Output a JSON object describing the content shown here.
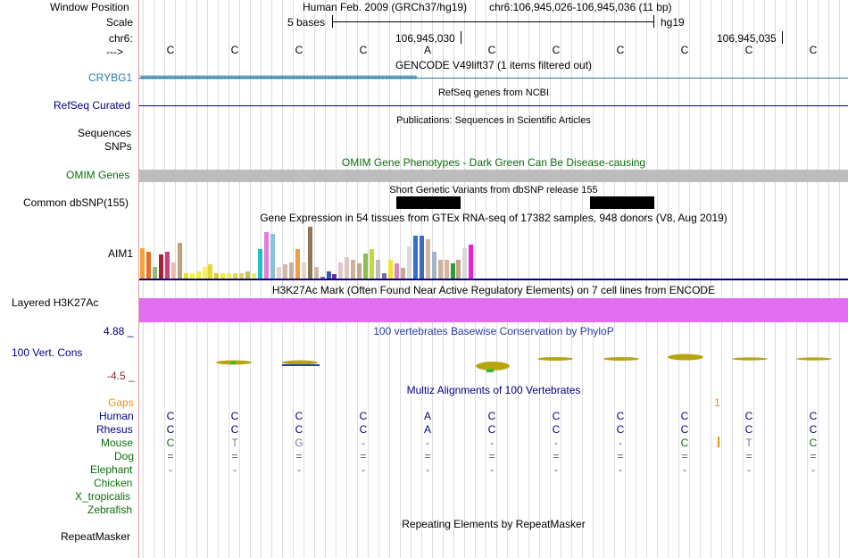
{
  "labels": {
    "window_position": "Window Position",
    "scale": "Scale",
    "chrom": "chr6:",
    "strand": "--->",
    "crybg1": "CRYBG1",
    "refseq": "RefSeq Curated",
    "sequences": "Sequences",
    "snps": "SNPs",
    "omim": "OMIM Genes",
    "common_dbsnp": "Common dbSNP(155)",
    "aim1": "AIM1",
    "layered": "Layered H3K27Ac",
    "phylop_max": "4.88 _",
    "cons": "100 Vert. Cons",
    "phylop_min": "-4.5 _",
    "gaps": "Gaps",
    "species": [
      "Human",
      "Rhesus",
      "Mouse",
      "Dog",
      "Elephant",
      "Chicken",
      "X_tropicalis",
      "Zebrafish"
    ],
    "repeatmasker": "RepeatMasker"
  },
  "header": {
    "assembly": "Human Feb. 2009 (GRCh37/hg19)",
    "position": "chr6:106,945,026-106,945,036 (11 bp)",
    "scale_text": "5 bases",
    "db": "hg19",
    "coord1": "106,945,030",
    "coord2": "106,945,035"
  },
  "sequence": [
    "C",
    "C",
    "C",
    "C",
    "A",
    "C",
    "C",
    "C",
    "C",
    "C",
    "C"
  ],
  "tracks": {
    "gencode": "GENCODE V49lift37 (1 items filtered out)",
    "refseq": "RefSeq genes from NCBI",
    "publications": "Publications: Sequences in Scientific Articles",
    "omim": "OMIM Gene Phenotypes - Dark Green Can Be Disease-causing",
    "dbsnp": "Short Genetic Variants from dbSNP release 155",
    "gtex": "Gene Expression in 54 tissues from GTEx RNA-seq of 17382 samples, 948 donors (V8, Aug 2019)",
    "h3k27ac": "H3K27Ac Mark (Often Found Near Active Regulatory Elements) on 7 cell lines from ENCODE",
    "phylop": "100 vertebrates Basewise Conservation by PhyloP",
    "multiz": "Multiz Alignments of 100 Vertebrates",
    "repeatmasker": "Repeating Elements by RepeatMasker",
    "gap_mark": "1"
  },
  "alignments": {
    "Human": [
      "C",
      "C",
      "C",
      "C",
      "A",
      "C",
      "C",
      "C",
      "C",
      "C",
      "C"
    ],
    "Rhesus": [
      "C",
      "C",
      "C",
      "C",
      "A",
      "C",
      "C",
      "C",
      "C",
      "C",
      "C"
    ],
    "Mouse": [
      "C",
      "T",
      "G",
      "-",
      "-",
      "-",
      "-",
      "-",
      "C",
      "T",
      "C"
    ],
    "Dog": [
      "=",
      "=",
      "=",
      "=",
      "=",
      "=",
      "=",
      "=",
      "=",
      "=",
      "="
    ],
    "Elephant": [
      "-",
      "-",
      "-",
      "-",
      "-",
      "-",
      "-",
      "-",
      "-",
      "-",
      "-"
    ]
  },
  "gtex_relative_levels": [
    0.58,
    0.5,
    0.22,
    0.45,
    0.5,
    0.3,
    0.68,
    0.11,
    0.11,
    0.13,
    0.22,
    0.27,
    0.11,
    0.11,
    0.11,
    0.11,
    0.11,
    0.13,
    0.11,
    0.56,
    0.88,
    0.84,
    0.22,
    0.27,
    0.31,
    0.56,
    0.31,
    0.98,
    0.22,
    0.04,
    0.13,
    0.09,
    0.3,
    0.4,
    0.36,
    0.29,
    0.47,
    0.56,
    0.36,
    0.11,
    0.36,
    0.29,
    0.2,
    0.61,
    0.81,
    0.81,
    0.75,
    0.5,
    0.36,
    0.36,
    0.29,
    0.36,
    0.57,
    0.65
  ],
  "colors": {
    "label_blue": "#000080",
    "crybg1": "#2a7ba6",
    "omim_green": "#0c6d0c",
    "h3k27ac": "#e16df0",
    "conservation_low": "#8a2b2b",
    "gaps": "#e69416",
    "mouse_gray": "#7b7ba8"
  }
}
